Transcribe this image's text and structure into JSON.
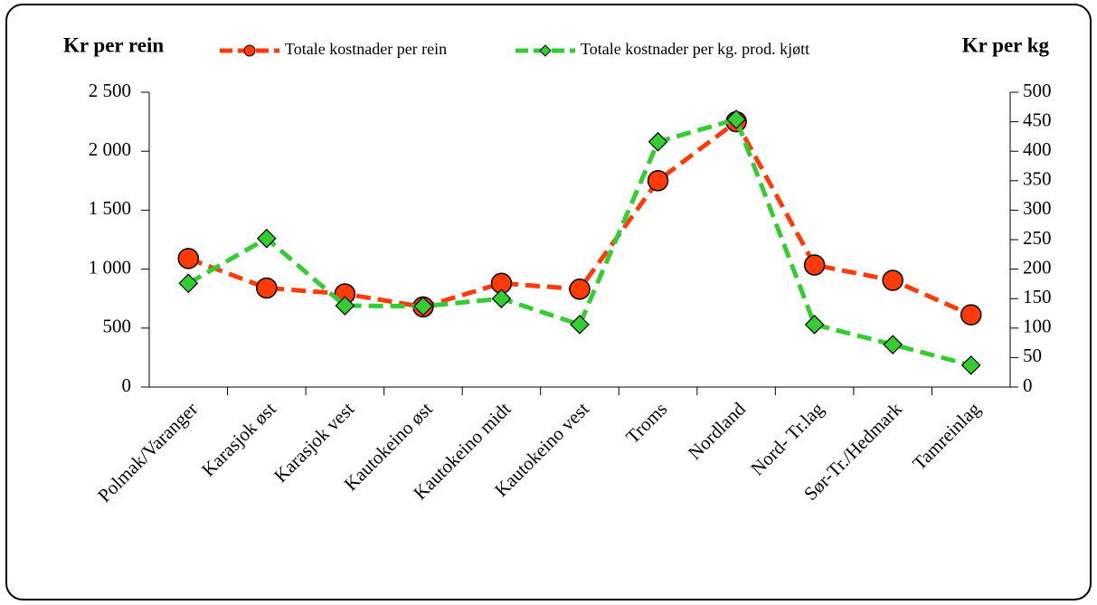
{
  "chart_data": {
    "type": "line",
    "categories": [
      "Polmak/Varanger",
      "Karasjok øst",
      "Karasjok vest",
      "Kautokeino øst",
      "Kautokeino midt",
      "Kautokeino vest",
      "Troms",
      "Nordland",
      "Nord- Tr.lag",
      "Sør-Tr./Hedmark",
      "Tamreinlag"
    ],
    "ylabel": "Kr per rein",
    "y2label": "Kr per kg",
    "ylim": [
      0,
      2500
    ],
    "yticks": [
      0,
      500,
      {
        "value": 1000,
        "label": "1 000"
      },
      {
        "value": 1500,
        "label": "1 500"
      },
      {
        "value": 2000,
        "label": "2 000"
      },
      {
        "value": 2500,
        "label": "2 500"
      }
    ],
    "y2lim": [
      0,
      500
    ],
    "y2ticks": [
      0,
      50,
      100,
      150,
      200,
      250,
      300,
      350,
      400,
      450,
      500
    ],
    "series": [
      {
        "name": "Totale kostnader per rein",
        "color": "#ff3b0a",
        "marker": "circle",
        "values": [
          1090,
          840,
          790,
          680,
          880,
          830,
          1750,
          2250,
          1035,
          905,
          613
        ]
      },
      {
        "name": "Totale kostnader per kg. prod. kjøtt",
        "color": "#33cc33",
        "marker": "diamond",
        "axis": "y2",
        "values": [
          176,
          252,
          138,
          137,
          150,
          106,
          416,
          454,
          106,
          72,
          37
        ]
      }
    ]
  }
}
